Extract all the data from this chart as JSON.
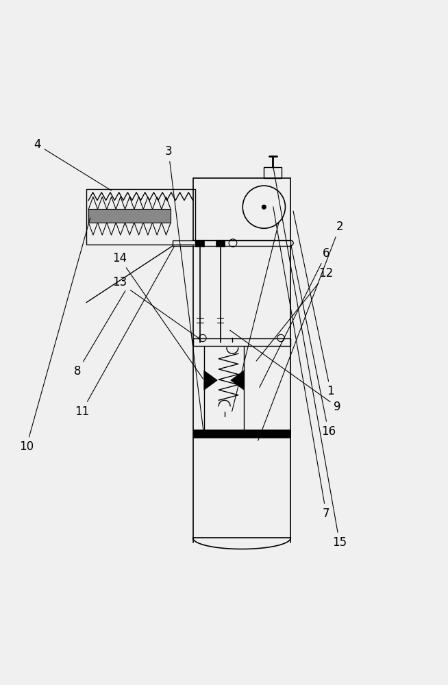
{
  "bg_color": "#f0f0f0",
  "line_color": "#000000"
}
